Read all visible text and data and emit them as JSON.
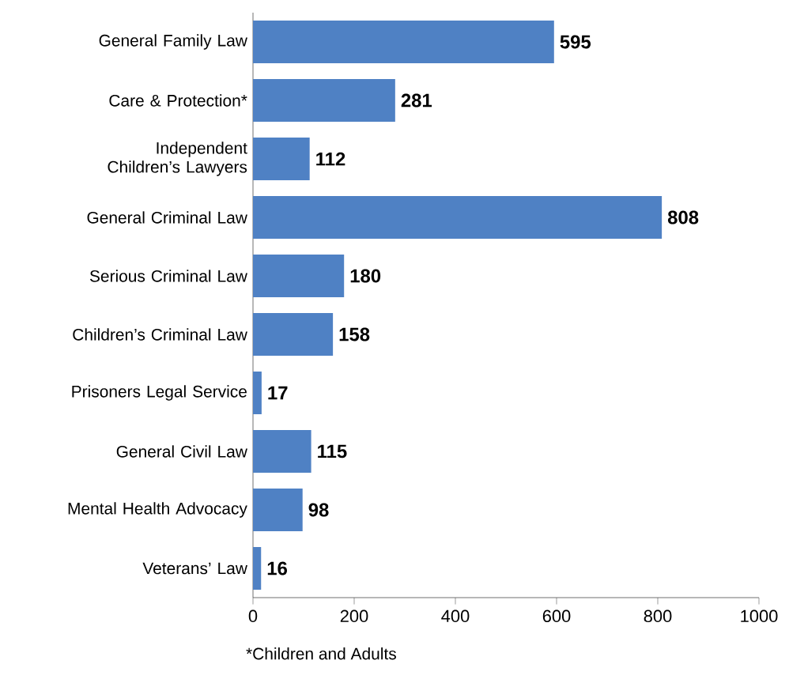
{
  "chart_data": {
    "type": "bar",
    "orientation": "horizontal",
    "categories": [
      "General Family Law",
      "Care & Protection*",
      "Independent Children’s Lawyers",
      "General Criminal Law",
      "Serious Criminal Law",
      "Children’s Criminal Law",
      "Prisoners Legal Service",
      "General Civil Law",
      "Mental Health Advocacy",
      "Veterans’ Law"
    ],
    "values": [
      595,
      281,
      112,
      808,
      180,
      158,
      17,
      115,
      98,
      16
    ],
    "color": "#4f81c4",
    "data_labels": true,
    "xlim": [
      0,
      1000
    ],
    "xticks": [
      0,
      200,
      400,
      600,
      800,
      1000
    ],
    "annotations": [
      "*Children and Adults"
    ]
  }
}
